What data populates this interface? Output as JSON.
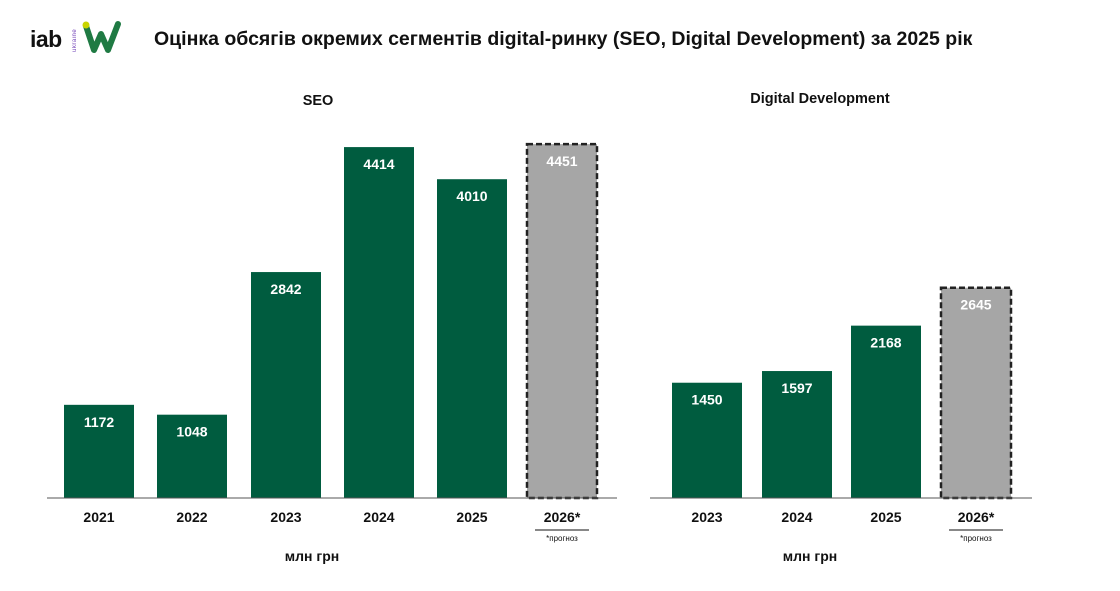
{
  "header": {
    "logo_text": "iab",
    "logo_sub": "ukraine",
    "title": "Оцінка обсягів окремих сегментів digital-ринку (SEO, Digital Development) за 2025 рік"
  },
  "colors": {
    "actual": "#005c3f",
    "forecast": "#a6a6a6",
    "axis": "#555555"
  },
  "chart_data": [
    {
      "type": "bar",
      "title": "SEO",
      "categories": [
        "2021",
        "2022",
        "2023",
        "2024",
        "2025",
        "2026*"
      ],
      "values": [
        1172,
        1048,
        2842,
        4414,
        4010,
        4451
      ],
      "forecast": [
        false,
        false,
        false,
        false,
        false,
        true
      ],
      "unit": "млн грн",
      "note": "*прогноз",
      "ylim": [
        0,
        4700
      ],
      "grid": false
    },
    {
      "type": "bar",
      "title": "Digital Development",
      "categories": [
        "2023",
        "2024",
        "2025",
        "2026*"
      ],
      "values": [
        1450,
        1597,
        2168,
        2645
      ],
      "forecast": [
        false,
        false,
        false,
        true
      ],
      "unit": "млн грн",
      "note": "*прогноз",
      "ylim": [
        0,
        4700
      ],
      "grid": false
    }
  ]
}
